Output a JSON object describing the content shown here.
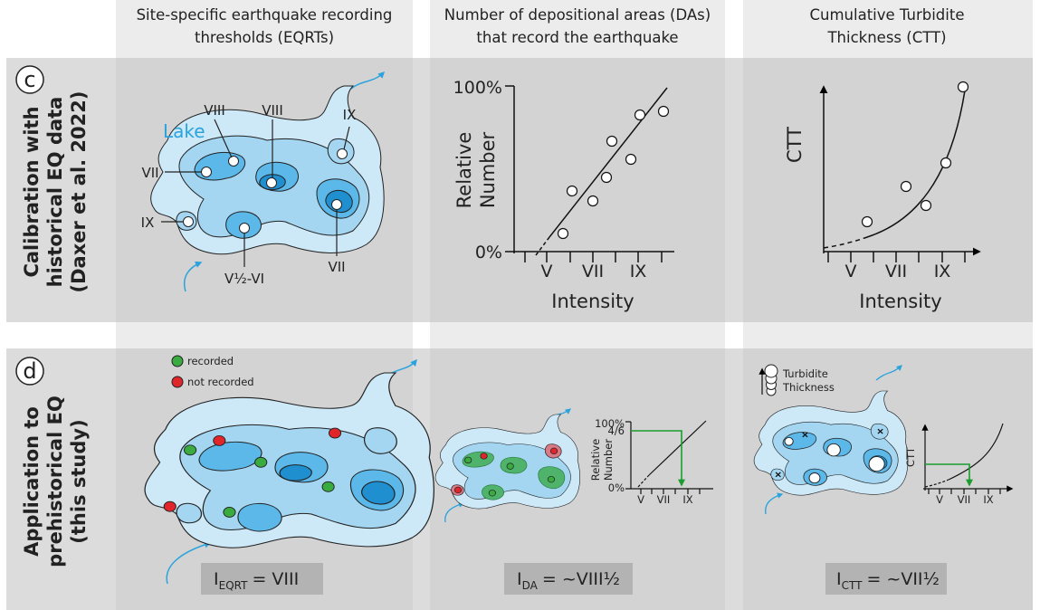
{
  "columns": [
    {
      "title_lines": [
        "Site-specific earthquake recording",
        "thresholds (EQRTs)"
      ]
    },
    {
      "title_lines": [
        "Number of depositional areas (DAs)",
        "that record the earthquake"
      ]
    },
    {
      "title_lines": [
        "Cumulative Turbidite",
        "Thickness (CTT)"
      ]
    }
  ],
  "rows": [
    {
      "letter": "c",
      "label_lines": [
        "Calibration with",
        "historical EQ data",
        "(Daxer et al. 2022)"
      ]
    },
    {
      "letter": "d",
      "label_lines": [
        "Application to",
        "prehistorical EQ",
        "(this study)"
      ]
    }
  ],
  "calibration": {
    "lake": {
      "title": "Lake",
      "site_labels": [
        "VIII",
        "VIII",
        "IX",
        "VII",
        "IX",
        "VII",
        "V½-VI"
      ]
    },
    "relative_number": {
      "y_top": "100%",
      "y_bottom": "0%",
      "y_axis_label_lines": [
        "Relative",
        "Number"
      ],
      "x_ticks": [
        "V",
        "VII",
        "IX"
      ],
      "x_axis_label": "Intensity"
    },
    "ctt": {
      "y_axis_label": "CTT",
      "x_ticks": [
        "V",
        "VII",
        "IX"
      ],
      "x_axis_label": "Intensity"
    }
  },
  "application": {
    "eqrt": {
      "legend": [
        "recorded",
        "not recorded"
      ],
      "result": {
        "symbol": "I",
        "subscript": "EQRT",
        "rest": "= VIII"
      }
    },
    "da": {
      "y_top": "100%",
      "y_marker": "4/6",
      "y_bottom": "0%",
      "y_axis_label_lines": [
        "Relative",
        "Number"
      ],
      "x_ticks": [
        "V",
        "VII",
        "IX"
      ],
      "result": {
        "symbol": "I",
        "subscript": "DA",
        "rest": "= ~VIII½"
      }
    },
    "ctt": {
      "legend_lines": [
        "Turbidite",
        "Thickness"
      ],
      "y_axis_label": "CTT",
      "x_ticks": [
        "V",
        "VII",
        "IX"
      ],
      "result": {
        "symbol": "I",
        "subscript": "CTT",
        "rest": "= ~VII½"
      }
    }
  }
}
